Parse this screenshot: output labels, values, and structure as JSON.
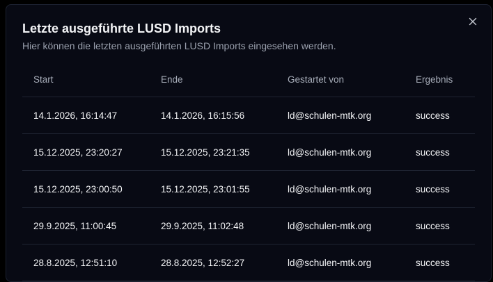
{
  "dialog": {
    "title": "Letzte ausgeführte LUSD Imports",
    "subtitle": "Hier können die letzten ausgeführten LUSD Imports eingesehen werden."
  },
  "table": {
    "headers": [
      "Start",
      "Ende",
      "Gestartet von",
      "Ergebnis"
    ],
    "rows": [
      [
        "14.1.2026, 16:14:47",
        "14.1.2026, 16:15:56",
        "ld@schulen-mtk.org",
        "success"
      ],
      [
        "15.12.2025, 23:20:27",
        "15.12.2025, 23:21:35",
        "ld@schulen-mtk.org",
        "success"
      ],
      [
        "15.12.2025, 23:00:50",
        "15.12.2025, 23:01:55",
        "ld@schulen-mtk.org",
        "success"
      ],
      [
        "29.9.2025, 11:00:45",
        "29.9.2025, 11:02:48",
        "ld@schulen-mtk.org",
        "success"
      ],
      [
        "28.8.2025, 12:51:10",
        "28.8.2025, 12:52:27",
        "ld@schulen-mtk.org",
        "success"
      ]
    ]
  }
}
